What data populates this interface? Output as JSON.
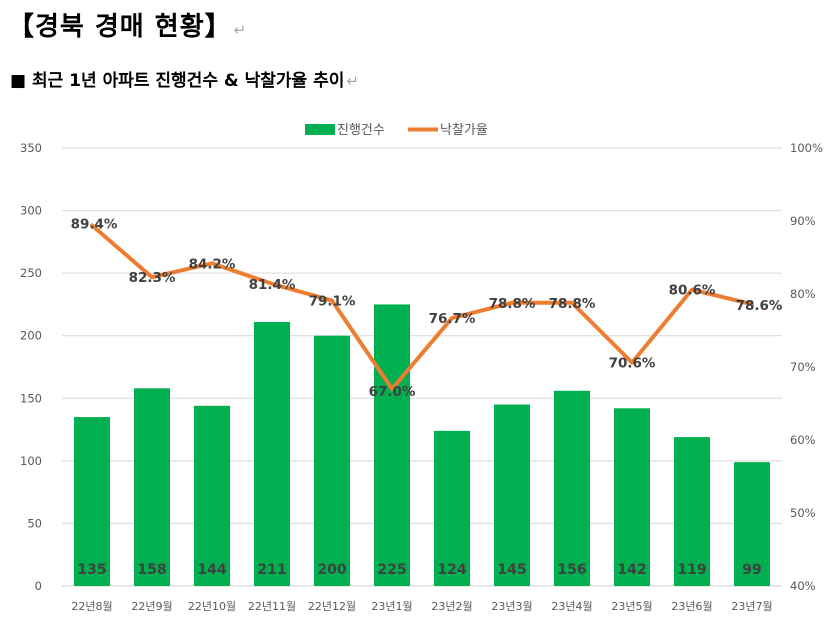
{
  "document": {
    "title": "【경북 경매 현황】",
    "paragraph_mark": "↵",
    "subtitle": "■ 최근 1년 아파트 진행건수 & 낙찰가율 추이"
  },
  "chart_data": {
    "type": "bar",
    "title": "",
    "categories": [
      "22년8월",
      "22년9월",
      "22년10월",
      "22년11월",
      "22년12월",
      "23년1월",
      "23년2월",
      "23년3월",
      "23년4월",
      "23년5월",
      "23년6월",
      "23년7월"
    ],
    "series": [
      {
        "name": "진행건수",
        "type": "bar",
        "axis": "left",
        "color": "#00b050",
        "values": [
          135,
          158,
          144,
          211,
          200,
          225,
          124,
          145,
          156,
          142,
          119,
          99
        ]
      },
      {
        "name": "낙찰가율",
        "type": "line",
        "axis": "right",
        "color": "#ed7d31",
        "values": [
          89.4,
          82.3,
          84.2,
          81.4,
          79.1,
          67.0,
          76.7,
          78.8,
          78.8,
          70.6,
          80.6,
          78.6
        ]
      }
    ],
    "y_left": {
      "min": 0,
      "max": 350,
      "ticks": [
        0,
        50,
        100,
        150,
        200,
        250,
        300,
        350
      ]
    },
    "y_right": {
      "min": 40,
      "max": 100,
      "ticks": [
        "40%",
        "50%",
        "60%",
        "70%",
        "80%",
        "90%",
        "100%"
      ]
    },
    "grid": true,
    "legend_position": "top"
  }
}
